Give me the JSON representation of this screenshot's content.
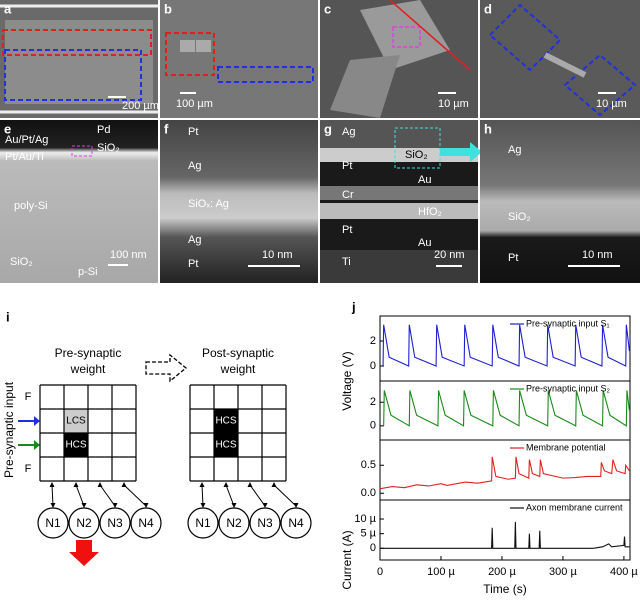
{
  "panels": {
    "a": {
      "label": "a",
      "scale": "200 µm"
    },
    "b": {
      "label": "b",
      "scale": "100 µm"
    },
    "c": {
      "label": "c",
      "scale": "10 µm"
    },
    "d": {
      "label": "d",
      "scale": "10 µm"
    },
    "e": {
      "label": "e",
      "texts": [
        "Au/Pt/Ag",
        "Pd",
        "Pt/Au/Ti",
        "SiO₂",
        "poly-Si",
        "SiO₂",
        "p-Si"
      ],
      "scale": "100 nm"
    },
    "f": {
      "label": "f",
      "texts": [
        "Pt",
        "Ag",
        "SiOₓ: Ag",
        "Ag",
        "Pt"
      ],
      "scale": "10 nm"
    },
    "g": {
      "label": "g",
      "texts": [
        "Ag",
        "SiO₂",
        "Pt",
        "Au",
        "Cr",
        "HfO₂",
        "Pt",
        "Au",
        "Ti"
      ],
      "scale": "20 nm"
    },
    "h": {
      "label": "h",
      "texts": [
        "Ag",
        "SiO₂",
        "Pt"
      ],
      "scale": "10 nm"
    }
  },
  "diagram": {
    "label": "i",
    "pre_title": [
      "Pre-synaptic",
      "weight"
    ],
    "post_title": [
      "Post-synaptic",
      "weight"
    ],
    "input_label": "Pre-synaptic input",
    "f_labels": [
      "F",
      "F"
    ],
    "pre_cells": [
      "LCS",
      "HCS"
    ],
    "post_cells": [
      "HCS",
      "HCS"
    ],
    "pre_neurons": [
      "N1",
      "N2",
      "N3",
      "N4"
    ],
    "post_neurons": [
      "N1",
      "N2",
      "N3",
      "N4"
    ]
  },
  "chart_label": "j",
  "chart_data": [
    {
      "type": "line",
      "ylabel": "Voltage (V)",
      "xlim": [
        0,
        0.00041
      ],
      "ylim": [
        -1.2,
        4
      ],
      "yticks": [
        0,
        2
      ],
      "x": [
        5e-06,
        6e-06,
        1.5e-05,
        4.7e-05,
        4.8e-05,
        5.7e-05,
        9.2e-05,
        9.3e-05,
        0.000102,
        0.000138,
        0.000139,
        0.000148,
        0.000184,
        0.000185,
        0.000194,
        0.000228,
        0.000229,
        0.000238,
        0.000274,
        0.000275,
        0.000284,
        0.00032,
        0.000321,
        0.00033,
        0.000364,
        0.000365,
        0.000374,
        0.000403,
        0.000404,
        0.000409
      ],
      "series": [
        {
          "name": "Pre-synaptic input S₁",
          "color": "#1f1fd0",
          "values": [
            0,
            3.3,
            0.7,
            0,
            3.3,
            0.7,
            0,
            3.3,
            0.7,
            0,
            3.3,
            0.7,
            0,
            3.3,
            0.7,
            0,
            3.3,
            0.7,
            0,
            3.3,
            0.7,
            0,
            3.3,
            0.7,
            0,
            3.3,
            0.7,
            0,
            3.3,
            1.2
          ]
        }
      ]
    },
    {
      "type": "line",
      "xlim": [
        0,
        0.00041
      ],
      "ylim": [
        -1.2,
        3.8
      ],
      "yticks": [
        0,
        2
      ],
      "x": [
        6e-06,
        7e-06,
        1.8e-05,
        4.8e-05,
        4.9e-05,
        6e-05,
        9.5e-05,
        9.6e-05,
        0.000107,
        0.000137,
        0.000138,
        0.000149,
        0.000185,
        0.000186,
        0.000197,
        0.000228,
        0.000229,
        0.00024,
        0.000275,
        0.000276,
        0.000287,
        0.000321,
        0.000322,
        0.000333,
        0.000365,
        0.000366,
        0.000377,
        0.000404,
        0.000405,
        0.000409
      ],
      "series": [
        {
          "name": "Pre-synaptic input S₂",
          "color": "#1a8a1a",
          "values": [
            0,
            3,
            0.9,
            0,
            3,
            0.9,
            0,
            3,
            0.9,
            0,
            3,
            0.9,
            0,
            3,
            0.9,
            0,
            3,
            0.9,
            0,
            3,
            0.9,
            0,
            3,
            0.9,
            0,
            3,
            0.9,
            0,
            3,
            1.3
          ]
        }
      ]
    },
    {
      "type": "line",
      "xlim": [
        0,
        0.00041
      ],
      "ylim": [
        -0.12,
        0.95
      ],
      "yticks": [
        {
          "value": 0,
          "label": "0.0"
        },
        0.5
      ],
      "x": [
        0,
        2e-05,
        4e-05,
        6e-05,
        8e-05,
        0.0001,
        0.00011,
        0.00014,
        0.00016,
        0.000183,
        0.000184,
        0.00019,
        0.00021,
        0.000222,
        0.000223,
        0.000228,
        0.000244,
        0.000245,
        0.00025,
        0.000262,
        0.000263,
        0.000268,
        0.0003,
        0.00032,
        0.00034,
        0.000362,
        0.000363,
        0.000368,
        0.00038,
        0.000382,
        0.000388,
        0.000402,
        0.000403,
        0.000409
      ],
      "series": [
        {
          "name": "Membrane potential",
          "color": "#e02020",
          "values": [
            0.08,
            0.12,
            0.1,
            0.15,
            0.13,
            0.17,
            0.14,
            0.2,
            0.18,
            0.22,
            0.65,
            0.3,
            0.25,
            0.27,
            0.65,
            0.35,
            0.27,
            0.6,
            0.35,
            0.3,
            0.6,
            0.35,
            0.27,
            0.28,
            0.3,
            0.3,
            0.55,
            0.4,
            0.35,
            0.6,
            0.4,
            0.35,
            0.5,
            0.4
          ]
        }
      ]
    },
    {
      "type": "line",
      "ylabel": "Current (A)",
      "xlabel": "Time (s)",
      "xlim": [
        0,
        0.00041
      ],
      "ylim": [
        -4e-06,
        1.65e-05
      ],
      "yticks": [
        0,
        {
          "value": 5e-06,
          "label": "5 µ"
        },
        {
          "value": 1e-05,
          "label": "10 µ"
        }
      ],
      "xticks": [
        0,
        {
          "value": 0.0001,
          "label": "100 µ"
        },
        {
          "value": 0.0002,
          "label": "200 µ"
        },
        {
          "value": 0.0003,
          "label": "300 µ"
        },
        {
          "value": 0.0004,
          "label": "400 µ"
        }
      ],
      "x": [
        0,
        0.000183,
        0.000184,
        0.000185,
        0.000221,
        0.000222,
        0.000223,
        0.000244,
        0.000245,
        0.000246,
        0.000261,
        0.000262,
        0.000263,
        0.00035,
        0.000365,
        0.000375,
        0.00038,
        0.0004,
        0.000401,
        0.000402,
        0.000409
      ],
      "series": [
        {
          "name": "Axon membrane current",
          "color": "#111111",
          "values": [
            0,
            0,
            7e-06,
            0,
            0,
            9e-06,
            0,
            0,
            5e-06,
            0,
            0,
            6e-06,
            0,
            0,
            5e-07,
            1.5e-06,
            5e-07,
            1e-06,
            4e-06,
            5e-07,
            5e-07
          ]
        }
      ]
    }
  ]
}
